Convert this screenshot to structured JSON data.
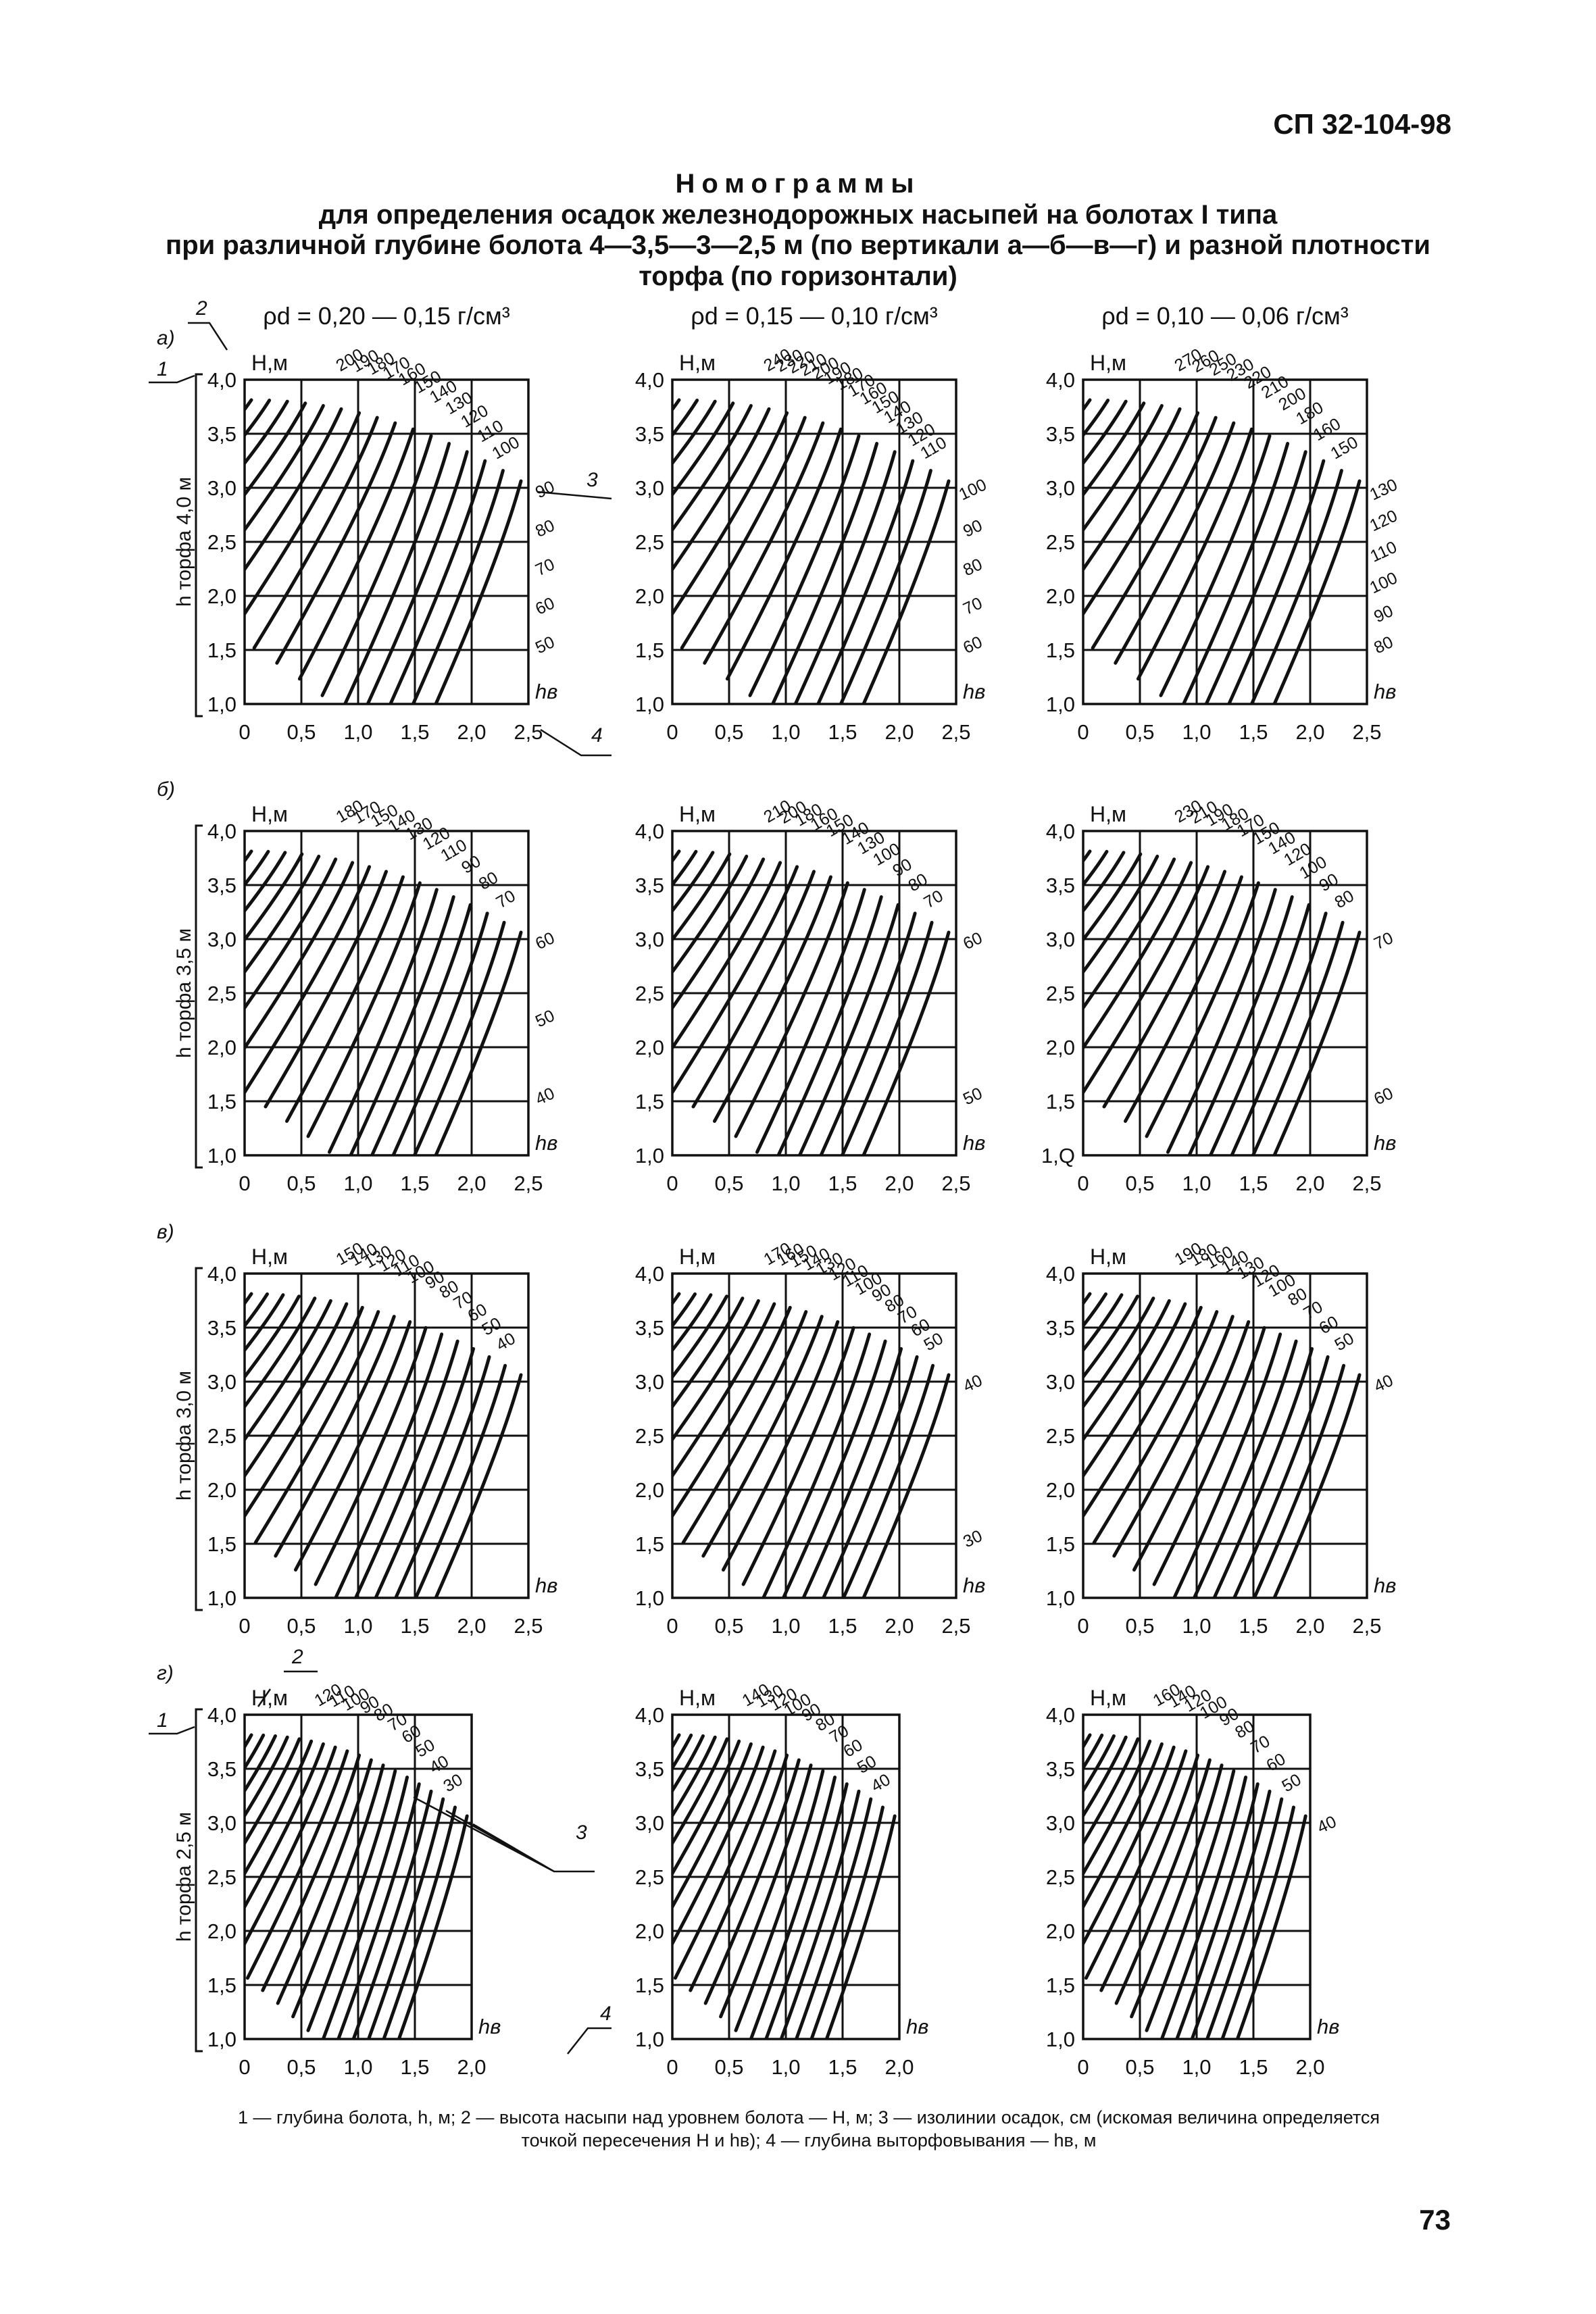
{
  "header": {
    "doc_code": "СП 32-104-98"
  },
  "title": [
    "Номограммы",
    "для определения осадок железнодорожных насыпей на болотах I типа",
    "при различной глубине болота 4—3,5—3—2,5 м (по вертикали а—б—в—г) и разной плотности",
    "торфа (по горизонтали)"
  ],
  "columns": [
    {
      "density": "ρd = 0,20 — 0,15 г/см³"
    },
    {
      "density": "ρd = 0,15 — 0,10 г/см³"
    },
    {
      "density": "ρd = 0,10 — 0,06 г/см³"
    }
  ],
  "callouts": {
    "n1": "1",
    "n2": "2",
    "n3": "3",
    "n4": "4"
  },
  "axis": {
    "y_title": "H,м",
    "x_title": "hв"
  },
  "chart_data": [
    {
      "row": "а)",
      "peat_depth_label": "h торфа 4,0 м",
      "columns": [
        {
          "y_ticks": [
            "4,0",
            "3,5",
            "3,0",
            "2,5",
            "2,0",
            "1,5",
            "1,0"
          ],
          "x_ticks": [
            "0",
            "0,5",
            "1,0",
            "1,5",
            "2,0",
            "2,5"
          ],
          "isolines_top": [
            "200",
            "190",
            "180",
            "170",
            "160",
            "150",
            "140",
            "130",
            "120",
            "110",
            "100"
          ],
          "isolines_right": [
            "90",
            "80",
            "70",
            "60",
            "50"
          ]
        },
        {
          "y_ticks": [
            "4,0",
            "3,5",
            "3,0",
            "2,5",
            "2,0",
            "1,5",
            "1,0"
          ],
          "x_ticks": [
            "0",
            "0,5",
            "1,0",
            "1,5",
            "2,0",
            "2,5"
          ],
          "isolines_top": [
            "240",
            "230",
            "220",
            "210",
            "200",
            "190",
            "180",
            "170",
            "160",
            "150",
            "140",
            "130",
            "120",
            "110"
          ],
          "isolines_right": [
            "100",
            "90",
            "80",
            "70",
            "60"
          ]
        },
        {
          "y_ticks": [
            "4,0",
            "3,5",
            "3,0",
            "2,5",
            "2,0",
            "1,5",
            "1,0"
          ],
          "x_ticks": [
            "0",
            "0,5",
            "1,0",
            "1,5",
            "2,0",
            "2,5"
          ],
          "isolines_top": [
            "270",
            "260",
            "250",
            "230",
            "220",
            "210",
            "200",
            "180",
            "160",
            "150"
          ],
          "isolines_right": [
            "130",
            "120",
            "110",
            "100",
            "90",
            "80"
          ]
        }
      ]
    },
    {
      "row": "б)",
      "peat_depth_label": "h торфа 3,5 м",
      "columns": [
        {
          "y_ticks": [
            "4,0",
            "3,5",
            "3,0",
            "2,5",
            "2,0",
            "1,5",
            "1,0"
          ],
          "x_ticks": [
            "0",
            "0,5",
            "1,0",
            "1,5",
            "2,0",
            "2,5"
          ],
          "isolines_top": [
            "180",
            "170",
            "150",
            "140",
            "130",
            "120",
            "110",
            "90",
            "80",
            "70"
          ],
          "isolines_right": [
            "60",
            "50",
            "40"
          ]
        },
        {
          "y_ticks": [
            "4,0",
            "3,5",
            "3,0",
            "2,5",
            "2,0",
            "1,5",
            "1,0"
          ],
          "x_ticks": [
            "0",
            "0,5",
            "1,0",
            "1,5",
            "2,0",
            "2,5"
          ],
          "isolines_top": [
            "210",
            "200",
            "180",
            "160",
            "150",
            "140",
            "130",
            "100",
            "90",
            "80",
            "70"
          ],
          "isolines_right": [
            "60",
            "50"
          ]
        },
        {
          "y_ticks": [
            "4,0",
            "3,5",
            "3,0",
            "2,5",
            "2,0",
            "1,5",
            "1,Q"
          ],
          "x_ticks": [
            "0",
            "0,5",
            "1,0",
            "1,5",
            "2,0",
            "2,5"
          ],
          "isolines_top": [
            "230",
            "210",
            "190",
            "180",
            "170",
            "150",
            "140",
            "120",
            "100",
            "90",
            "80"
          ],
          "isolines_right": [
            "70",
            "60"
          ]
        }
      ]
    },
    {
      "row": "в)",
      "peat_depth_label": "h торфа 3,0 м",
      "columns": [
        {
          "y_ticks": [
            "4,0",
            "3,5",
            "3,0",
            "2,5",
            "2,0",
            "1,5",
            "1,0"
          ],
          "x_ticks": [
            "0",
            "0,5",
            "1,0",
            "1,5",
            "2,0",
            "2,5"
          ],
          "isolines_top": [
            "150",
            "140",
            "130",
            "120",
            "110",
            "100",
            "90",
            "80",
            "70",
            "60",
            "50",
            "40"
          ],
          "isolines_right": []
        },
        {
          "y_ticks": [
            "4,0",
            "3,5",
            "3,0",
            "2,5",
            "2,0",
            "1,5",
            "1,0"
          ],
          "x_ticks": [
            "0",
            "0,5",
            "1,0",
            "1,5",
            "2,0",
            "2,5"
          ],
          "isolines_top": [
            "170",
            "160",
            "150",
            "140",
            "130",
            "120",
            "110",
            "100",
            "90",
            "80",
            "70",
            "60",
            "50"
          ],
          "isolines_right": [
            "40",
            "30"
          ]
        },
        {
          "y_ticks": [
            "4,0",
            "3,5",
            "3,0",
            "2,5",
            "2,0",
            "1,5",
            "1,0"
          ],
          "x_ticks": [
            "0",
            "0,5",
            "1,0",
            "1,5",
            "2,0",
            "2,5"
          ],
          "isolines_top": [
            "190",
            "180",
            "160",
            "140",
            "130",
            "120",
            "100",
            "80",
            "70",
            "60",
            "50"
          ],
          "isolines_right": [
            "40"
          ]
        }
      ]
    },
    {
      "row": "г)",
      "peat_depth_label": "h торфа 2,5 м",
      "columns": [
        {
          "y_ticks": [
            "4,0",
            "3,5",
            "3,0",
            "2,5",
            "2,0",
            "1,5",
            "1,0"
          ],
          "x_ticks": [
            "0",
            "0,5",
            "1,0",
            "1,5",
            "2,0"
          ],
          "isolines_top": [
            "120",
            "110",
            "100",
            "90",
            "80",
            "70",
            "60",
            "50",
            "40",
            "30"
          ],
          "isolines_right": []
        },
        {
          "y_ticks": [
            "4,0",
            "3,5",
            "3,0",
            "2,5",
            "2,0",
            "1,5",
            "1,0"
          ],
          "x_ticks": [
            "0",
            "0,5",
            "1,0",
            "1,5",
            "2,0"
          ],
          "isolines_top": [
            "140",
            "130",
            "120",
            "100",
            "90",
            "80",
            "70",
            "60",
            "50",
            "40"
          ],
          "isolines_right": []
        },
        {
          "y_ticks": [
            "4,0",
            "3,5",
            "3,0",
            "2,5",
            "2,0",
            "1,5",
            "1,0"
          ],
          "x_ticks": [
            "0",
            "0,5",
            "1,0",
            "1,5",
            "2,0"
          ],
          "isolines_top": [
            "160",
            "140",
            "120",
            "100",
            "90",
            "80",
            "70",
            "60",
            "50"
          ],
          "isolines_right": [
            "40"
          ]
        }
      ]
    }
  ],
  "caption": [
    "1 — глубина болота, h, м; 2 — высота насыпи над уровнем болота — H, м; 3 — изолинии осадок, см (искомая величина определяется",
    "точкой пересечения H и hв); 4 — глубина выторфовывания — hв, м"
  ],
  "footer": {
    "page_number": "73"
  }
}
